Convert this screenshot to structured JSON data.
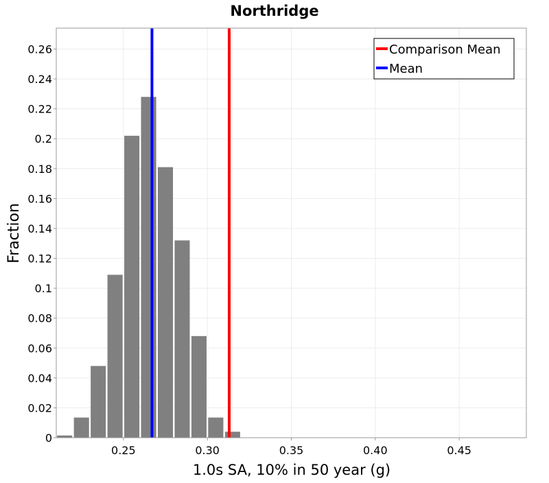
{
  "chart_data": {
    "type": "bar",
    "title": "Northridge",
    "xlabel": "1.0s SA, 10% in 50 year (g)",
    "ylabel": "Fraction",
    "xlim": [
      0.21,
      0.49
    ],
    "ylim": [
      0,
      0.274
    ],
    "xticks": [
      0.25,
      0.3,
      0.35,
      0.4,
      0.45
    ],
    "xtick_labels": [
      "0.25",
      "0.30",
      "0.35",
      "0.40",
      "0.45"
    ],
    "yticks": [
      0,
      0.02,
      0.04,
      0.06,
      0.08,
      0.1,
      0.12,
      0.14,
      0.16,
      0.18,
      0.2,
      0.22,
      0.24,
      0.26
    ],
    "ytick_labels": [
      "0",
      "0.02",
      "0.04",
      "0.06",
      "0.08",
      "0.1",
      "0.12",
      "0.14",
      "0.16",
      "0.18",
      "0.2",
      "0.22",
      "0.24",
      "0.26"
    ],
    "grid": true,
    "bar_color": "#808080",
    "bin_width": 0.01,
    "bins": [
      {
        "center": 0.215,
        "value": 0.0015
      },
      {
        "center": 0.225,
        "value": 0.0135
      },
      {
        "center": 0.235,
        "value": 0.048
      },
      {
        "center": 0.245,
        "value": 0.109
      },
      {
        "center": 0.255,
        "value": 0.202
      },
      {
        "center": 0.265,
        "value": 0.228
      },
      {
        "center": 0.275,
        "value": 0.181
      },
      {
        "center": 0.285,
        "value": 0.132
      },
      {
        "center": 0.295,
        "value": 0.068
      },
      {
        "center": 0.305,
        "value": 0.0135
      },
      {
        "center": 0.315,
        "value": 0.004
      }
    ],
    "vlines": [
      {
        "name": "Comparison Mean",
        "x": 0.313,
        "color": "#ff0000"
      },
      {
        "name": "Mean",
        "x": 0.267,
        "color": "#0000ff"
      }
    ],
    "legend": {
      "position": "top-right",
      "entries": [
        {
          "label": "Comparison Mean",
          "color": "#ff0000"
        },
        {
          "label": "Mean",
          "color": "#0000ff"
        }
      ]
    }
  }
}
